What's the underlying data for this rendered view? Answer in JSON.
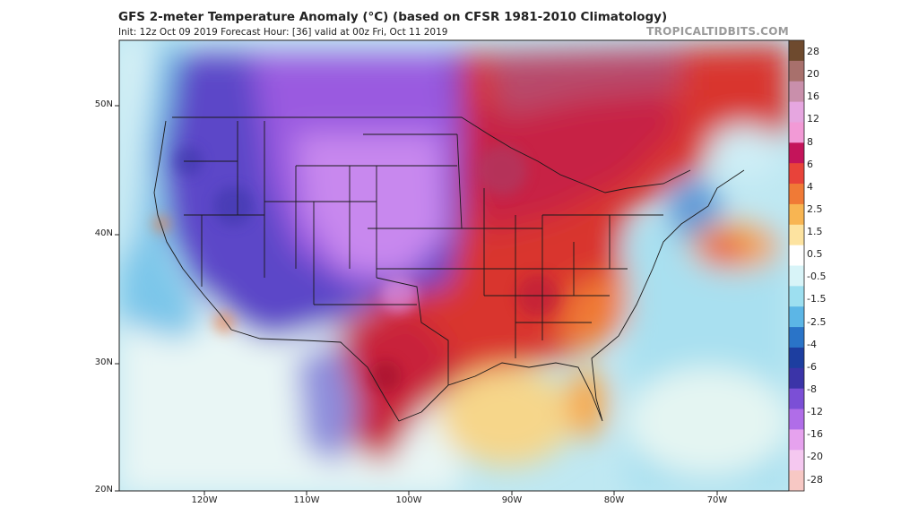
{
  "header": {
    "title": "GFS 2-meter Temperature Anomaly (°C) (based on CFSR 1981-2010 Climatology)",
    "subtitle": "Init: 12z Oct 09 2019   Forecast Hour: [36]   valid at 00z Fri, Oct 11 2019",
    "brand": "TROPICALTIDBITS.COM"
  },
  "axes": {
    "lat_labels": [
      "50N",
      "40N",
      "30N",
      "20N"
    ],
    "lon_labels": [
      "120W",
      "110W",
      "100W",
      "90W",
      "80W",
      "70W"
    ]
  },
  "colorbar": {
    "labels": [
      "28",
      "20",
      "16",
      "12",
      "8",
      "6",
      "4",
      "2.5",
      "1.5",
      "0.5",
      "-0.5",
      "-1.5",
      "-2.5",
      "-4",
      "-6",
      "-8",
      "-12",
      "-16",
      "-20",
      "-28"
    ],
    "colors": [
      "#6e4a2e",
      "#a8706c",
      "#c98fab",
      "#e6a6e0",
      "#f29ad6",
      "#c4145a",
      "#e8433a",
      "#f07a36",
      "#f8b552",
      "#fde3a0",
      "#ffffff",
      "#d8f4f8",
      "#9ddff0",
      "#5cb6e6",
      "#2a74c8",
      "#1d3ea0",
      "#3b34a8",
      "#7b4fd6",
      "#b06de8",
      "#e6a2ee",
      "#f5c8f0",
      "#f7c8c4"
    ]
  },
  "regions": {
    "west": "cold anomaly",
    "east": "warm anomaly",
    "atlantic_warm_blob": "warm anomaly off Northeast coast"
  }
}
